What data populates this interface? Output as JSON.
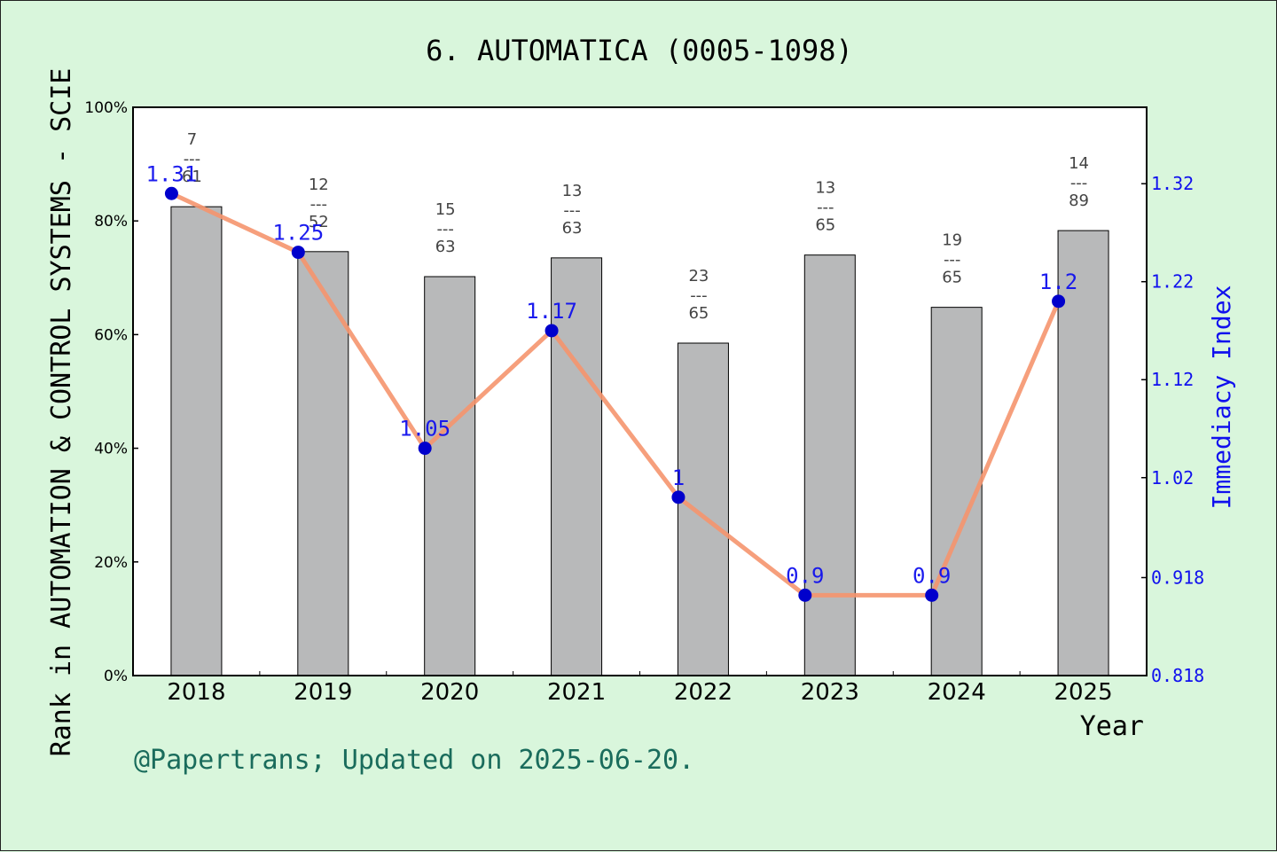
{
  "title": "6. AUTOMATICA (0005-1098)",
  "footer": "@Papertrans; Updated on 2025-06-20.",
  "colors": {
    "background": "#d9f6dc",
    "bar": "#b8b9ba",
    "line": "#f5956e",
    "marker": "#0000cc",
    "right_axis": "#1010ee",
    "footer": "#1a6c5c"
  },
  "chart_data": {
    "type": "bar",
    "title": "6. AUTOMATICA (0005-1098)",
    "xlabel": "Year",
    "ylabel": "Rank in AUTOMATION & CONTROL SYSTEMS - SCIE",
    "ylabel_right": "Immediacy Index",
    "categories": [
      "2018",
      "2019",
      "2020",
      "2021",
      "2022",
      "2023",
      "2024",
      "2025"
    ],
    "ylim": [
      0,
      100
    ],
    "yticks": [
      "0%",
      "20%",
      "40%",
      "60%",
      "80%",
      "100%"
    ],
    "y2lim": [
      0.818,
      1.398
    ],
    "y2ticks": [
      "0.818",
      "0.918",
      "1.02",
      "1.12",
      "1.22",
      "1.32"
    ],
    "grid": false,
    "series": [
      {
        "kind": "bar",
        "values": [
          82.5,
          74.6,
          70.2,
          73.5,
          58.5,
          74.0,
          64.8,
          78.3
        ],
        "labels": [
          {
            "rank": "7",
            "sep": "---",
            "total": "61"
          },
          {
            "rank": "12",
            "sep": "---",
            "total": "52"
          },
          {
            "rank": "15",
            "sep": "---",
            "total": "63"
          },
          {
            "rank": "13",
            "sep": "---",
            "total": "63"
          },
          {
            "rank": "23",
            "sep": "---",
            "total": "65"
          },
          {
            "rank": "13",
            "sep": "---",
            "total": "65"
          },
          {
            "rank": "19",
            "sep": "---",
            "total": "65"
          },
          {
            "rank": "14",
            "sep": "---",
            "total": "89"
          }
        ]
      },
      {
        "kind": "line",
        "axis": "right",
        "values": [
          1.31,
          1.25,
          1.05,
          1.17,
          1.0,
          0.9,
          0.9,
          1.2
        ],
        "labels": [
          "1.31",
          "1.25",
          "1.05",
          "1.17",
          "1",
          "0.9",
          "0.9",
          "1.2"
        ]
      }
    ]
  }
}
